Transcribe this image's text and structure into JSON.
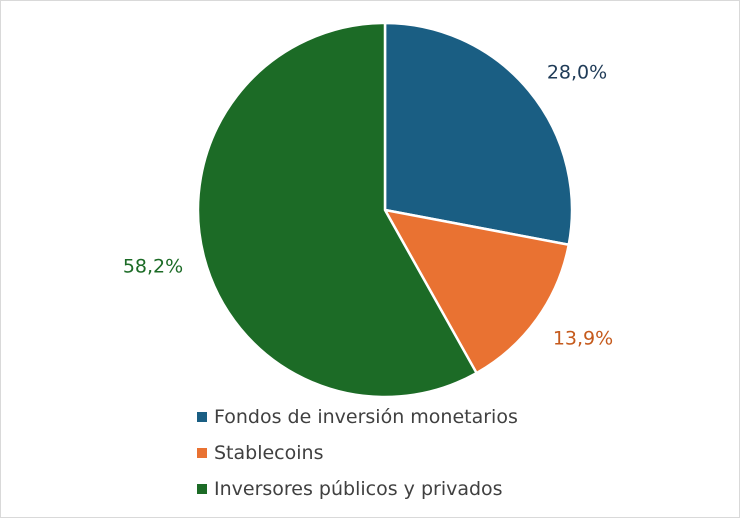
{
  "chart_data": {
    "type": "pie",
    "title": "",
    "slices": [
      {
        "label": "Fondos de inversión monetarios",
        "value": 28.0,
        "value_label": "28,0%",
        "color": "#1a5e83"
      },
      {
        "label": "Stablecoins",
        "value": 13.9,
        "value_label": "13,9%",
        "color": "#e97232"
      },
      {
        "label": "Inversores públicos y privados",
        "value": 58.2,
        "value_label": "58,2%",
        "color": "#1c6b26"
      }
    ],
    "value_label_colors": [
      "#1f3b57",
      "#c55a1c",
      "#1c6b26"
    ],
    "start_angle": "top (12 o'clock)",
    "direction": "clockwise",
    "legend_position": "bottom"
  }
}
